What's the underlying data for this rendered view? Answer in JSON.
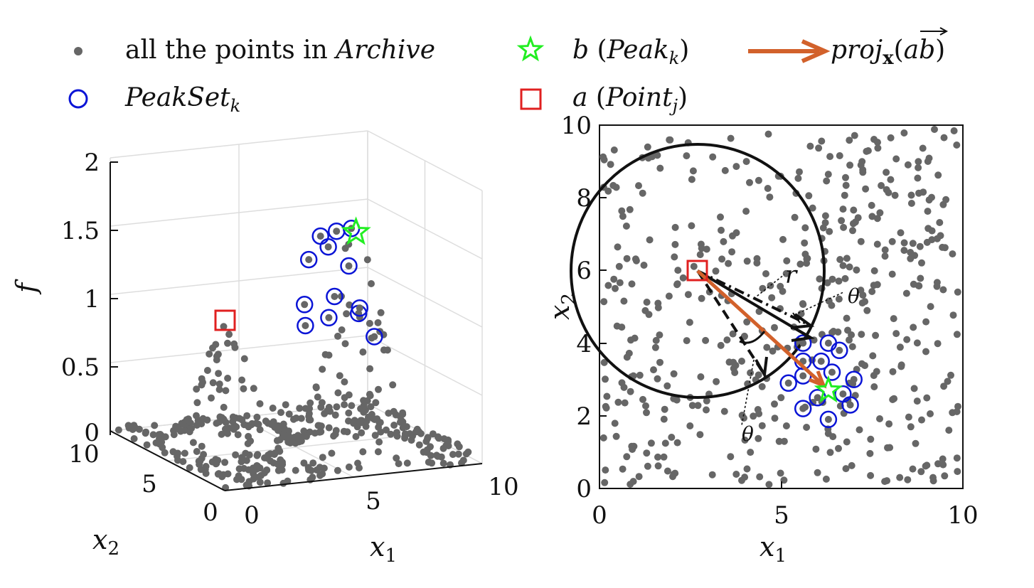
{
  "colors": {
    "archive": "#666666",
    "peakset": "#0a14d6",
    "peak": "#22ee22",
    "point": "#e02020",
    "proj": "#d2612b",
    "axis": "#111111",
    "grid": "#dddddd"
  },
  "legend": {
    "archive": "all the points in Archive",
    "peakset": "PeakSet_k",
    "peak": "b (Peak_k)",
    "point": "a (Point_j)",
    "proj": "proj_x(ab)"
  },
  "chart_data": [
    {
      "type": "scatter",
      "projection": "3d",
      "xlabel": "x1",
      "ylabel": "x2",
      "zlabel": "f",
      "xlim": [
        0,
        10
      ],
      "ylim": [
        0,
        10
      ],
      "zlim": [
        0,
        2
      ],
      "x_ticks": [
        "0",
        "5",
        "10"
      ],
      "y_ticks": [
        "0",
        "5",
        "10"
      ],
      "z_ticks": [
        "0",
        "0.5",
        "1",
        "1.5",
        "2"
      ],
      "grid": true,
      "peak_k": {
        "x": 6.3,
        "y": 2.7,
        "f": 1.65
      },
      "point_j": {
        "x": 2.7,
        "y": 5.9,
        "f": 0.85
      },
      "peakset": [
        {
          "x": 5.5,
          "y": 4.0,
          "f": 1.58
        },
        {
          "x": 5.9,
          "y": 3.5,
          "f": 1.63
        },
        {
          "x": 6.3,
          "y": 3.1,
          "f": 1.66
        },
        {
          "x": 4.6,
          "y": 3.0,
          "f": 1.47
        },
        {
          "x": 5.0,
          "y": 2.2,
          "f": 1.59
        },
        {
          "x": 6.6,
          "y": 4.0,
          "f": 1.34
        },
        {
          "x": 4.3,
          "y": 2.7,
          "f": 1.16
        },
        {
          "x": 5.6,
          "y": 3.0,
          "f": 1.18
        },
        {
          "x": 6.0,
          "y": 1.8,
          "f": 1.1
        },
        {
          "x": 6.8,
          "y": 3.5,
          "f": 1.05
        },
        {
          "x": 4.2,
          "y": 2.4,
          "f": 1.02
        },
        {
          "x": 5.2,
          "y": 2.6,
          "f": 1.05
        },
        {
          "x": 7.1,
          "y": 2.9,
          "f": 0.86
        }
      ]
    },
    {
      "type": "scatter",
      "xlabel": "x1",
      "ylabel": "x2",
      "xlim": [
        0,
        10
      ],
      "ylim": [
        0,
        10
      ],
      "x_ticks": [
        "0",
        "5",
        "10"
      ],
      "y_ticks": [
        "0",
        "2",
        "4",
        "6",
        "8",
        "10"
      ],
      "point_j": {
        "x": 2.7,
        "y": 5.9
      },
      "peak_k": {
        "x": 6.3,
        "y": 2.7
      },
      "circle": {
        "center": [
          2.7,
          5.9
        ],
        "radius": 3.5
      },
      "peakset": [
        {
          "x": 5.6,
          "y": 4.0
        },
        {
          "x": 6.3,
          "y": 4.0
        },
        {
          "x": 5.6,
          "y": 3.5
        },
        {
          "x": 6.1,
          "y": 3.5
        },
        {
          "x": 6.6,
          "y": 3.8
        },
        {
          "x": 6.4,
          "y": 3.2
        },
        {
          "x": 5.6,
          "y": 3.1
        },
        {
          "x": 7.0,
          "y": 3.0
        },
        {
          "x": 5.2,
          "y": 2.9
        },
        {
          "x": 6.0,
          "y": 2.5
        },
        {
          "x": 6.7,
          "y": 2.6
        },
        {
          "x": 5.6,
          "y": 2.2
        },
        {
          "x": 6.9,
          "y": 2.3
        },
        {
          "x": 6.3,
          "y": 1.9
        }
      ],
      "annotations": [
        "r",
        "θ",
        "θ"
      ]
    }
  ]
}
